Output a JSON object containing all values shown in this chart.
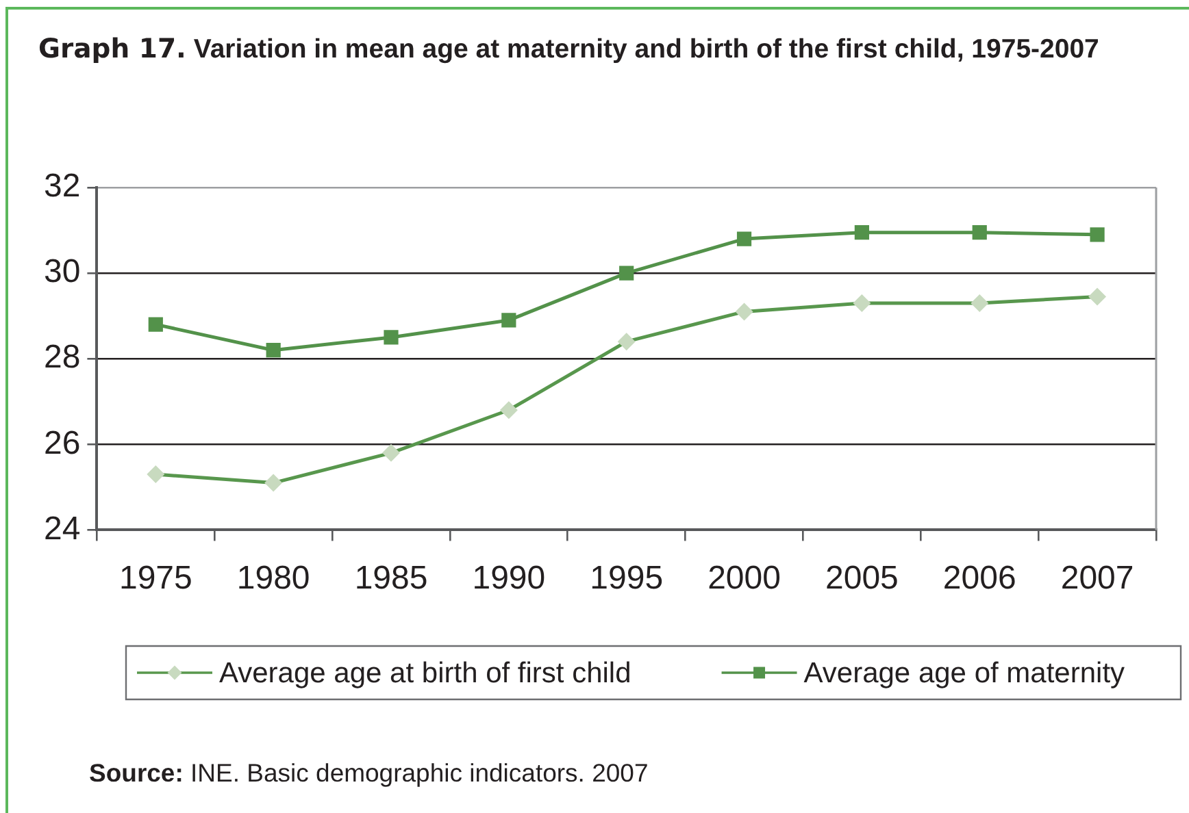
{
  "chart_data": {
    "type": "line",
    "title": "Graph 17. Variation in mean age at maternity and birth of the first child, 1975-2007",
    "categories": [
      "1975",
      "1980",
      "1985",
      "1990",
      "1995",
      "2000",
      "2005",
      "2006",
      "2007"
    ],
    "series": [
      {
        "name": "Average age at birth of first child",
        "color": "#58974d",
        "colors": [
          "#c8dabf",
          "#c8dabf",
          "#c8dabf",
          "#c8dabf",
          "#c8dabf",
          "#c8dabf",
          "#c8dabf",
          "#c8dabf",
          "#c8dabf"
        ],
        "marker": "diamond",
        "values": [
          25.3,
          25.1,
          25.8,
          26.8,
          28.4,
          29.1,
          29.3,
          29.3,
          29.45
        ]
      },
      {
        "name": "Average age of maternity",
        "color": "#53924a",
        "marker": "square",
        "values": [
          28.8,
          28.2,
          28.5,
          28.9,
          30.0,
          30.8,
          30.95,
          30.95,
          30.9
        ]
      }
    ],
    "ylim": [
      24,
      32
    ],
    "yticks": [
      24,
      26,
      28,
      30,
      32
    ],
    "grid": "y",
    "legend": "bottom",
    "annotations": [
      "Source: INE. Basic demographic indicators. 2007"
    ]
  }
}
